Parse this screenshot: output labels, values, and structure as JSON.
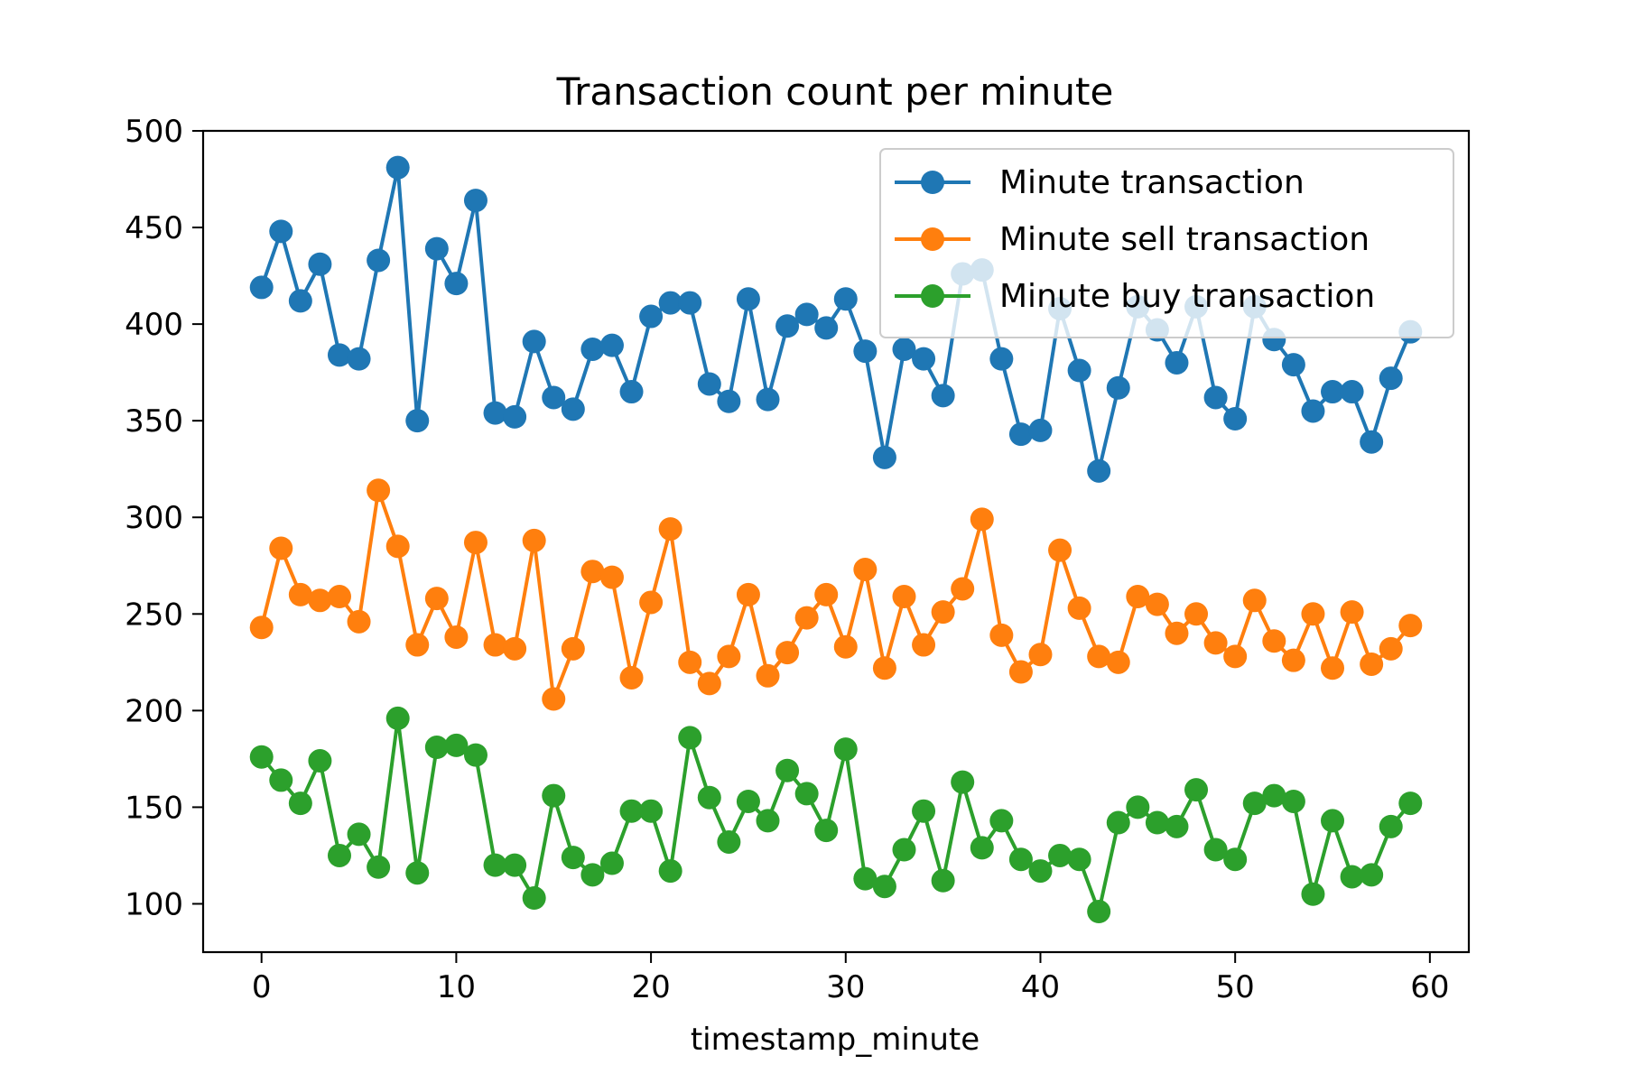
{
  "chart_data": {
    "type": "line",
    "title": "Transaction count per minute",
    "xlabel": "timestamp_minute",
    "ylabel": "",
    "xlim": [
      -3,
      62
    ],
    "ylim": [
      75,
      500
    ],
    "xticks": [
      0,
      10,
      20,
      30,
      40,
      50,
      60
    ],
    "yticks": [
      100,
      150,
      200,
      250,
      300,
      350,
      400,
      450,
      500
    ],
    "grid": false,
    "legend_position": "top-right",
    "x": [
      0,
      1,
      2,
      3,
      4,
      5,
      6,
      7,
      8,
      9,
      10,
      11,
      12,
      13,
      14,
      15,
      16,
      17,
      18,
      19,
      20,
      21,
      22,
      23,
      24,
      25,
      26,
      27,
      28,
      29,
      30,
      31,
      32,
      33,
      34,
      35,
      36,
      37,
      38,
      39,
      40,
      41,
      42,
      43,
      44,
      45,
      46,
      47,
      48,
      49,
      50,
      51,
      52,
      53,
      54,
      55,
      56,
      57,
      58,
      59
    ],
    "series": [
      {
        "name": "Minute transaction",
        "color": "#1f77b4",
        "values": [
          419,
          448,
          412,
          431,
          384,
          382,
          433,
          481,
          350,
          439,
          421,
          464,
          354,
          352,
          391,
          362,
          356,
          387,
          389,
          365,
          404,
          411,
          411,
          369,
          360,
          413,
          361,
          399,
          405,
          398,
          413,
          386,
          331,
          387,
          382,
          363,
          426,
          428,
          382,
          343,
          345,
          408,
          376,
          324,
          367,
          409,
          397,
          380,
          409,
          362,
          351,
          409,
          392,
          379,
          355,
          365,
          365,
          339,
          372,
          396
        ]
      },
      {
        "name": "Minute sell transaction",
        "color": "#ff7f0e",
        "values": [
          243,
          284,
          260,
          257,
          259,
          246,
          314,
          285,
          234,
          258,
          238,
          287,
          234,
          232,
          288,
          206,
          232,
          272,
          269,
          217,
          256,
          294,
          225,
          214,
          228,
          260,
          218,
          230,
          248,
          260,
          233,
          273,
          222,
          259,
          234,
          251,
          263,
          299,
          239,
          220,
          229,
          283,
          253,
          228,
          225,
          259,
          255,
          240,
          250,
          235,
          228,
          257,
          236,
          226,
          250,
          222,
          251,
          224,
          232,
          244
        ]
      },
      {
        "name": "Minute buy transaction",
        "color": "#2ca02c",
        "values": [
          176,
          164,
          152,
          174,
          125,
          136,
          119,
          196,
          116,
          181,
          182,
          177,
          120,
          120,
          103,
          156,
          124,
          115,
          121,
          148,
          148,
          117,
          186,
          155,
          132,
          153,
          143,
          169,
          157,
          138,
          180,
          113,
          109,
          128,
          148,
          112,
          163,
          129,
          143,
          123,
          117,
          125,
          123,
          96,
          142,
          150,
          142,
          140,
          159,
          128,
          123,
          152,
          156,
          153,
          105,
          143,
          114,
          115,
          140,
          152
        ]
      }
    ]
  }
}
